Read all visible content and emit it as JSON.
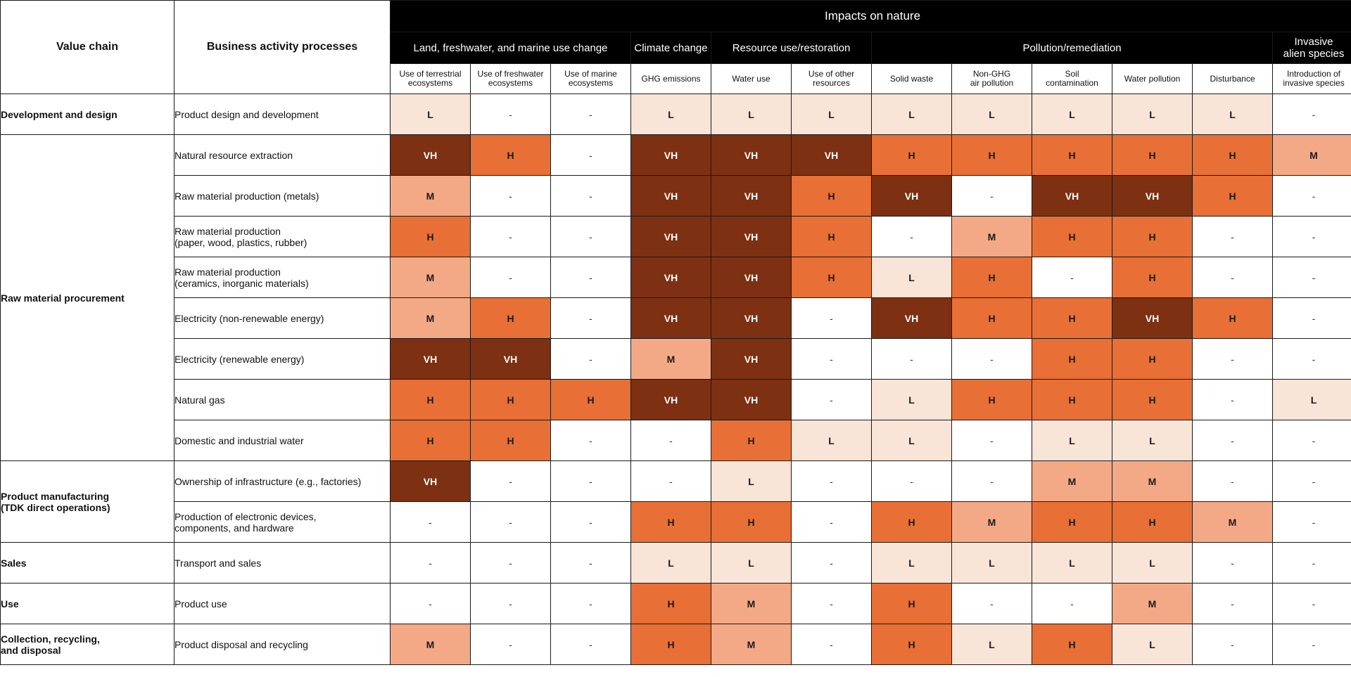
{
  "header": {
    "value_chain": "Value chain",
    "business_activity": "Business activity processes",
    "impacts": "Impacts on nature",
    "categories": [
      {
        "label": "Land, freshwater, and marine use change",
        "span": 3
      },
      {
        "label": "Climate change",
        "span": 1
      },
      {
        "label": "Resource use/restoration",
        "span": 2
      },
      {
        "label": "Pollution/remediation",
        "span": 5
      },
      {
        "label": "Invasive\nalien species",
        "span": 1
      }
    ],
    "columns": [
      "Use of terrestrial\necosystems",
      "Use of freshwater\necosystems",
      "Use of marine\necosystems",
      "GHG emissions",
      "Water use",
      "Use of other\nresources",
      "Solid waste",
      "Non-GHG\nair pollution",
      "Soil\ncontamination",
      "Water pollution",
      "Disturbance",
      "Introduction of\ninvasive species"
    ]
  },
  "groups": [
    {
      "value_chain": "Development and design",
      "rows": [
        {
          "activity": "Product design and development",
          "values": [
            "L",
            "-",
            "-",
            "L",
            "L",
            "L",
            "L",
            "L",
            "L",
            "L",
            "L",
            "-"
          ]
        }
      ]
    },
    {
      "value_chain": "Raw material procurement",
      "rows": [
        {
          "activity": "Natural resource extraction",
          "values": [
            "VH",
            "H",
            "-",
            "VH",
            "VH",
            "VH",
            "H",
            "H",
            "H",
            "H",
            "H",
            "M"
          ]
        },
        {
          "activity": "Raw material production (metals)",
          "values": [
            "M",
            "-",
            "-",
            "VH",
            "VH",
            "H",
            "VH",
            "-",
            "VH",
            "VH",
            "H",
            "-"
          ]
        },
        {
          "activity": "Raw material production\n(paper, wood, plastics, rubber)",
          "values": [
            "H",
            "-",
            "-",
            "VH",
            "VH",
            "H",
            "-",
            "M",
            "H",
            "H",
            "-",
            "-"
          ]
        },
        {
          "activity": "Raw material production\n(ceramics, inorganic materials)",
          "values": [
            "M",
            "-",
            "-",
            "VH",
            "VH",
            "H",
            "L",
            "H",
            "-",
            "H",
            "-",
            "-"
          ]
        },
        {
          "activity": "Electricity (non-renewable energy)",
          "values": [
            "M",
            "H",
            "-",
            "VH",
            "VH",
            "-",
            "VH",
            "H",
            "H",
            "VH",
            "H",
            "-"
          ]
        },
        {
          "activity": "Electricity (renewable energy)",
          "values": [
            "VH",
            "VH",
            "-",
            "M",
            "VH",
            "-",
            "-",
            "-",
            "H",
            "H",
            "-",
            "-"
          ]
        },
        {
          "activity": "Natural gas",
          "values": [
            "H",
            "H",
            "H",
            "VH",
            "VH",
            "-",
            "L",
            "H",
            "H",
            "H",
            "-",
            "L"
          ]
        },
        {
          "activity": "Domestic and industrial water",
          "values": [
            "H",
            "H",
            "-",
            "-",
            "H",
            "L",
            "L",
            "-",
            "L",
            "L",
            "-",
            "-"
          ]
        }
      ]
    },
    {
      "value_chain": "Product manufacturing\n(TDK direct operations)",
      "rows": [
        {
          "activity": "Ownership of infrastructure (e.g., factories)",
          "values": [
            "VH",
            "-",
            "-",
            "-",
            "L",
            "-",
            "-",
            "-",
            "M",
            "M",
            "-",
            "-"
          ]
        },
        {
          "activity": "Production of electronic devices,\ncomponents, and hardware",
          "values": [
            "-",
            "-",
            "-",
            "H",
            "H",
            "-",
            "H",
            "M",
            "H",
            "H",
            "M",
            "-"
          ]
        }
      ]
    },
    {
      "value_chain": "Sales",
      "rows": [
        {
          "activity": "Transport and sales",
          "values": [
            "-",
            "-",
            "-",
            "L",
            "L",
            "-",
            "L",
            "L",
            "L",
            "L",
            "-",
            "-"
          ]
        }
      ]
    },
    {
      "value_chain": "Use",
      "rows": [
        {
          "activity": "Product use",
          "values": [
            "-",
            "-",
            "-",
            "H",
            "M",
            "-",
            "H",
            "-",
            "-",
            "M",
            "-",
            "-"
          ]
        }
      ]
    },
    {
      "value_chain": "Collection, recycling,\nand disposal",
      "rows": [
        {
          "activity": "Product disposal and recycling",
          "values": [
            "M",
            "-",
            "-",
            "H",
            "M",
            "-",
            "H",
            "L",
            "H",
            "L",
            "-",
            "-"
          ]
        }
      ]
    }
  ],
  "colors": {
    "VH": "#7d3012",
    "H": "#e86f35",
    "M": "#f4a986",
    "L": "#f9e4d8",
    "-": "#ffffff"
  }
}
